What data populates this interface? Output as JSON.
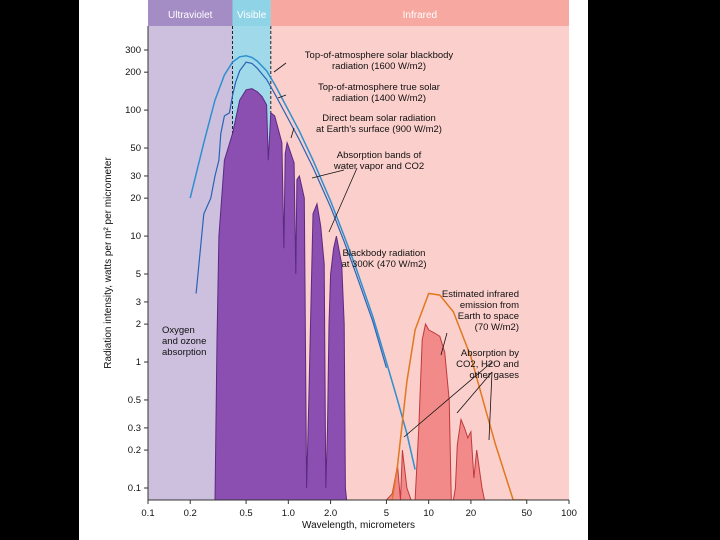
{
  "chart_data": {
    "type": "area",
    "xlabel": "Wavelength, micrometers",
    "ylabel": "Radiation intensity, watts per m² per micrometer",
    "x_scale": "log",
    "y_scale": "log",
    "xlim": [
      0.1,
      100
    ],
    "ylim": [
      0.07,
      400
    ],
    "x_ticks": [
      "0.1",
      "0.2",
      "0.5",
      "1.0",
      "2.0",
      "5",
      "10",
      "20",
      "50",
      "100"
    ],
    "y_ticks": [
      "300",
      "200",
      "100",
      "50",
      "30",
      "20",
      "10",
      "5",
      "3",
      "2",
      "1",
      "0.5",
      "0.3",
      "0.2",
      "0.1"
    ],
    "bands": [
      {
        "name": "Ultraviolet",
        "from": 0.1,
        "to": 0.4,
        "color": "#a48cc4"
      },
      {
        "name": "Visible",
        "from": 0.4,
        "to": 0.75,
        "color": "#8fd3e6"
      },
      {
        "name": "Infrared",
        "from": 0.75,
        "to": 100,
        "color": "#f7a8a0"
      }
    ],
    "series": [
      {
        "name": "Top-of-atmosphere solar blackbody radiation",
        "x": [
          0.2,
          0.25,
          0.3,
          0.35,
          0.4,
          0.45,
          0.5,
          0.55,
          0.6,
          0.7,
          0.8,
          1.0,
          1.2,
          1.5,
          2.0,
          2.5,
          3.0,
          4.0,
          5.0,
          6.0,
          7.0,
          8.0
        ],
        "y": [
          20,
          55,
          120,
          190,
          240,
          265,
          270,
          262,
          245,
          205,
          160,
          100,
          68,
          40,
          19,
          10,
          5.8,
          2.3,
          1.0,
          0.5,
          0.27,
          0.14
        ]
      },
      {
        "name": "Top-of-atmosphere true solar radiation",
        "x": [
          0.22,
          0.25,
          0.28,
          0.3,
          0.32,
          0.33,
          0.35,
          0.38,
          0.4,
          0.42,
          0.45,
          0.5,
          0.55,
          0.6,
          0.7,
          0.8,
          1.0,
          1.2,
          1.5,
          2.0,
          2.5,
          3.0,
          4.0,
          5.0
        ],
        "y": [
          3.5,
          15,
          20,
          30,
          40,
          65,
          90,
          95,
          130,
          165,
          205,
          240,
          235,
          215,
          175,
          135,
          85,
          58,
          35,
          17,
          9,
          5.2,
          2.1,
          0.9
        ]
      },
      {
        "name": "Direct beam solar radiation at Earth's surface",
        "x": [
          0.3,
          0.31,
          0.32,
          0.35,
          0.4,
          0.45,
          0.5,
          0.55,
          0.6,
          0.65,
          0.7,
          0.72,
          0.75,
          0.8,
          0.85,
          0.9,
          0.93,
          0.95,
          0.98,
          1.0,
          1.1,
          1.13,
          1.15,
          1.2,
          1.3,
          1.35,
          1.4,
          1.45,
          1.5,
          1.6,
          1.7,
          1.8,
          1.85,
          1.9,
          1.95,
          2.0,
          2.1,
          2.2,
          2.4,
          2.5,
          2.55,
          2.6
        ],
        "y": [
          0.07,
          1.5,
          10,
          40,
          65,
          120,
          145,
          148,
          140,
          128,
          110,
          40,
          95,
          90,
          70,
          55,
          8,
          45,
          55,
          52,
          38,
          5,
          28,
          30,
          20,
          0.1,
          0.5,
          3,
          15,
          18,
          12,
          6,
          0.1,
          0.3,
          2,
          5,
          8,
          10,
          6,
          2,
          0.1,
          0.07
        ]
      },
      {
        "name": "Blackbody radiation at 300K",
        "x": [
          5.5,
          6,
          7,
          8,
          10,
          12,
          15,
          20,
          25,
          30,
          40,
          50
        ],
        "y": [
          0.07,
          0.15,
          0.7,
          1.8,
          3.5,
          3.4,
          2.5,
          1.1,
          0.45,
          0.22,
          0.08,
          0.035
        ]
      },
      {
        "name": "Estimated infrared emission from Earth to space",
        "x": [
          5,
          5.5,
          6,
          6.3,
          6.5,
          7,
          7.5,
          8,
          8.5,
          9,
          9.5,
          10,
          11,
          12,
          13,
          14,
          14.5,
          15,
          15.5,
          16,
          17,
          18,
          19,
          20,
          21,
          22,
          24,
          25
        ],
        "y": [
          0.07,
          0.09,
          0.15,
          0.08,
          0.2,
          0.1,
          0.08,
          0.07,
          0.3,
          1.5,
          2,
          1.8,
          1.7,
          1.6,
          1.2,
          0.5,
          0.07,
          0.08,
          0.1,
          0.22,
          0.35,
          0.3,
          0.25,
          0.28,
          0.12,
          0.2,
          0.1,
          0.07
        ]
      }
    ],
    "annotations": [
      {
        "lines": [
          "Top-of-atmosphere solar blackbody",
          "radiation (1600 W/m2)"
        ]
      },
      {
        "lines": [
          "Top-of-atmosphere true solar",
          "radiation (1400 W/m2)"
        ]
      },
      {
        "lines": [
          "Direct beam solar radiation",
          "at Earth's surface (900 W/m2)"
        ]
      },
      {
        "lines": [
          "Absorption bands of",
          "water vapor and CO2"
        ]
      },
      {
        "lines": [
          "Blackbody radiation",
          "at 300K (470 W/m2)"
        ]
      },
      {
        "lines": [
          "Estimated infrared",
          "emission from",
          "Earth to space",
          "(70 W/m2)"
        ]
      },
      {
        "lines": [
          "Absorption by",
          "CO2, H2O and",
          "other gases"
        ]
      },
      {
        "lines": [
          "Oxygen",
          "and ozone",
          "absorption"
        ]
      }
    ]
  }
}
